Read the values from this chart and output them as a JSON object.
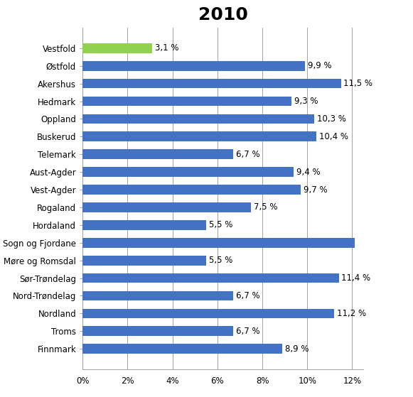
{
  "title": "2010",
  "categories": [
    "Finnmark",
    "Troms",
    "Nordland",
    "Nord-Trøndelag",
    "Sør-Trøndelag",
    "Møre og Romsdal",
    "Sogn og Fjordane",
    "Hordaland",
    "Rogaland",
    "Vest-Agder",
    "Aust-Agder",
    "Telemark",
    "Buskerud",
    "Oppland",
    "Hedmark",
    "Akershus",
    "Østfold",
    "Vestfold"
  ],
  "values": [
    8.9,
    6.7,
    11.2,
    6.7,
    11.4,
    5.5,
    12.1,
    5.5,
    7.5,
    9.7,
    9.4,
    6.7,
    10.4,
    10.3,
    9.3,
    11.5,
    9.9,
    3.1
  ],
  "bar_colors": [
    "#4472C4",
    "#4472C4",
    "#4472C4",
    "#4472C4",
    "#4472C4",
    "#4472C4",
    "#4472C4",
    "#4472C4",
    "#4472C4",
    "#4472C4",
    "#4472C4",
    "#4472C4",
    "#4472C4",
    "#4472C4",
    "#4472C4",
    "#4472C4",
    "#4472C4",
    "#92D050"
  ],
  "sogno_index": 6,
  "xlim": [
    0,
    12.5
  ],
  "xticks": [
    0,
    2,
    4,
    6,
    8,
    10,
    12
  ],
  "xtick_labels": [
    "0%",
    "2%",
    "4%",
    "6%",
    "8%",
    "10%",
    "12%"
  ],
  "bar_height": 0.55,
  "title_fontsize": 18,
  "tick_fontsize": 8.5,
  "label_fontsize": 8.5,
  "background_color": "#FFFFFF",
  "grid_color": "#A0A0A0"
}
